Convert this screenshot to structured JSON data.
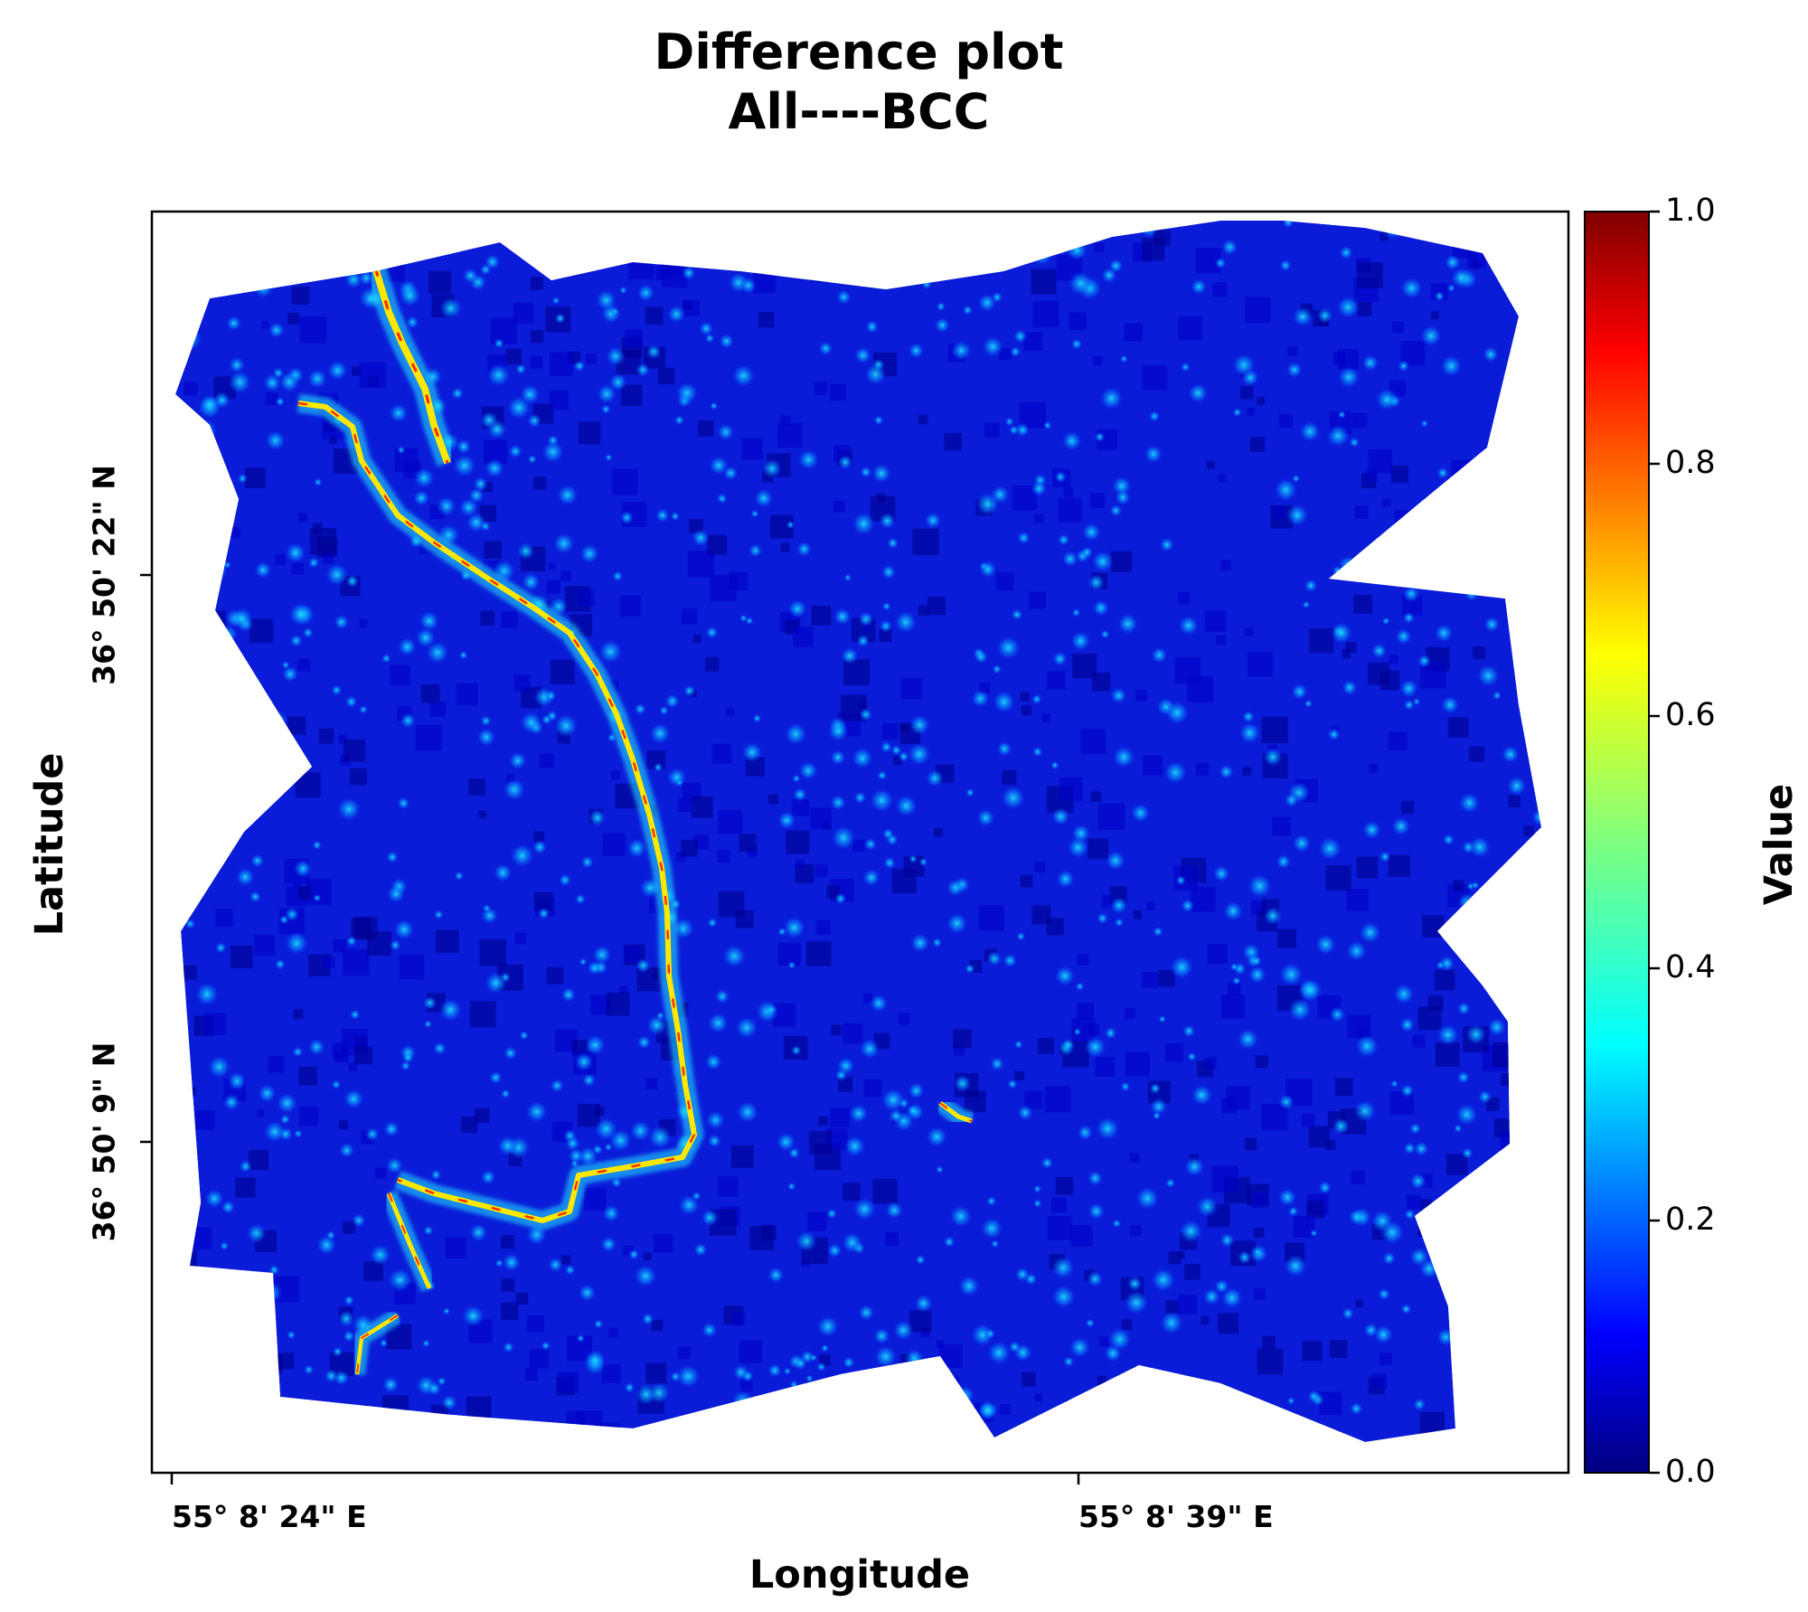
{
  "chart_data": {
    "type": "heatmap",
    "title": "Difference plot",
    "subtitle": "All----BCC",
    "xlabel": "Longitude",
    "ylabel": "Latitude",
    "x_ticks": [
      "55° 8' 24\" E",
      "55° 8' 39\" E"
    ],
    "y_ticks": [
      "36° 50' 22\" N",
      "36° 50' 9\" N"
    ],
    "colorbar": {
      "label": "Value",
      "colormap": "jet",
      "range": [
        0.0,
        1.0
      ],
      "ticks": [
        "0.0",
        "0.2",
        "0.4",
        "0.6",
        "0.8",
        "1.0"
      ]
    },
    "background_value": 0.05,
    "grid": false
  },
  "colors": {
    "jet_stops": [
      "#00007f",
      "#0000ff",
      "#007fff",
      "#00ffff",
      "#7fff7f",
      "#ffff00",
      "#ff7f00",
      "#ff0000",
      "#7f0000"
    ]
  }
}
